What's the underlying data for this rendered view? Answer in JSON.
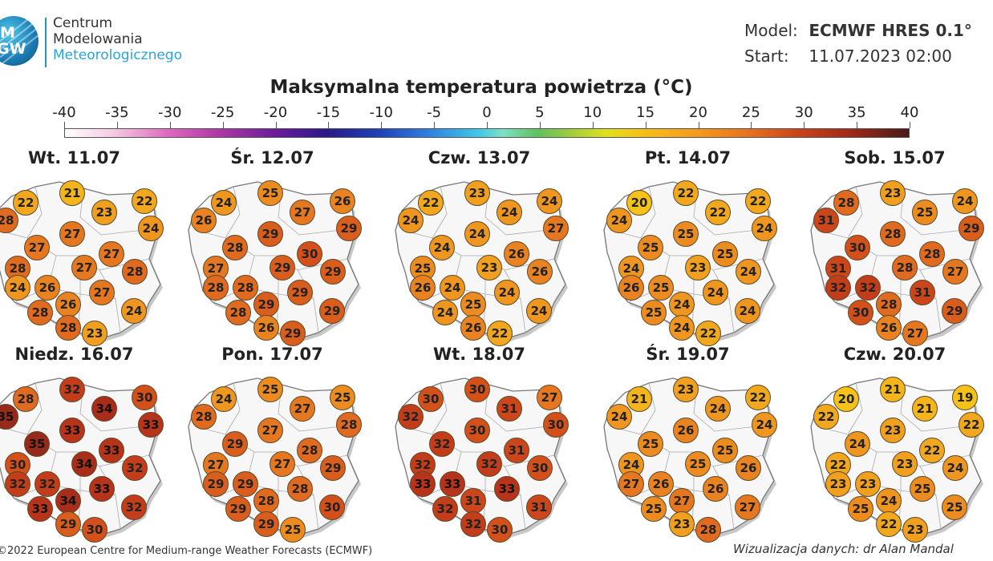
{
  "logo": {
    "mark_letters": [
      "M",
      "GW"
    ],
    "line1": "Centrum",
    "line2": "Modelowania",
    "line3": "Meteorologicznego",
    "color_dark": "#333333",
    "color_accent": "#2aa6d6"
  },
  "meta": {
    "model_label": "Model:",
    "model_value": "ECMWF HRES 0.1°",
    "start_label": "Start:",
    "start_value": "11.07.2023 02:00"
  },
  "title": "Maksymalna temperatura powietrza (°C)",
  "scale": {
    "ticks": [
      "-40",
      "-35",
      "-30",
      "-25",
      "-20",
      "-15",
      "-10",
      "-5",
      "0",
      "5",
      "10",
      "15",
      "20",
      "25",
      "30",
      "35",
      "40"
    ],
    "min": -40,
    "max": 40
  },
  "colors": {
    "c19": "#f6c21a",
    "c20": "#f6c21a",
    "c21": "#f3b41c",
    "c22": "#f2a81e",
    "c23": "#f09f1f",
    "c24": "#ee9620",
    "c25": "#ec8c20",
    "c26": "#e98221",
    "c27": "#e67721",
    "c28": "#e06a1f",
    "c29": "#d95d1d",
    "c30": "#d3501b",
    "c31": "#cc461b",
    "c32": "#c33d1a",
    "c33": "#b7341a",
    "c34": "#a92e1a",
    "c35": "#982a1c"
  },
  "panels": [
    {
      "label": "Wt. 11.07",
      "values": [
        22,
        21,
        23,
        22,
        24,
        28,
        27,
        27,
        27,
        28,
        27,
        26,
        24,
        28,
        26,
        27,
        28,
        24,
        23,
        28
      ]
    },
    {
      "label": "Śr. 12.07",
      "values": [
        24,
        25,
        27,
        26,
        29,
        26,
        28,
        29,
        30,
        27,
        29,
        28,
        28,
        29,
        29,
        29,
        28,
        29,
        29,
        26
      ]
    },
    {
      "label": "Czw. 13.07",
      "values": [
        22,
        23,
        24,
        24,
        27,
        24,
        24,
        24,
        26,
        25,
        23,
        24,
        26,
        26,
        25,
        24,
        24,
        24,
        22,
        26
      ]
    },
    {
      "label": "Pt. 14.07",
      "values": [
        20,
        22,
        22,
        22,
        24,
        24,
        25,
        25,
        25,
        24,
        23,
        25,
        26,
        24,
        24,
        24,
        25,
        24,
        22,
        24
      ]
    },
    {
      "label": "Sob. 15.07",
      "values": [
        28,
        23,
        25,
        24,
        29,
        31,
        30,
        28,
        28,
        31,
        28,
        32,
        32,
        27,
        28,
        31,
        30,
        29,
        27,
        26
      ]
    },
    {
      "label": "Niedz. 16.07",
      "values": [
        28,
        32,
        34,
        30,
        33,
        35,
        35,
        33,
        33,
        30,
        34,
        32,
        32,
        32,
        34,
        33,
        33,
        32,
        30,
        29
      ]
    },
    {
      "label": "Pon. 17.07",
      "values": [
        24,
        25,
        27,
        25,
        28,
        28,
        29,
        27,
        28,
        27,
        27,
        29,
        29,
        29,
        28,
        28,
        29,
        30,
        25,
        29
      ]
    },
    {
      "label": "Wt. 18.07",
      "values": [
        30,
        30,
        31,
        27,
        30,
        32,
        32,
        30,
        31,
        32,
        32,
        33,
        33,
        30,
        31,
        33,
        32,
        31,
        30,
        32
      ]
    },
    {
      "label": "Śr. 19.07",
      "values": [
        21,
        23,
        24,
        22,
        24,
        24,
        25,
        26,
        25,
        24,
        25,
        26,
        27,
        26,
        27,
        26,
        25,
        27,
        28,
        23
      ]
    },
    {
      "label": "Czw. 20.07",
      "values": [
        20,
        21,
        21,
        19,
        22,
        22,
        24,
        23,
        22,
        22,
        23,
        23,
        23,
        24,
        24,
        25,
        25,
        25,
        23,
        22
      ]
    }
  ],
  "footer": {
    "left": "©2022 European Centre for Medium-range Weather Forecasts (ECMWF)",
    "right": "Wizualizacja danych: dr Alan Mandal"
  }
}
